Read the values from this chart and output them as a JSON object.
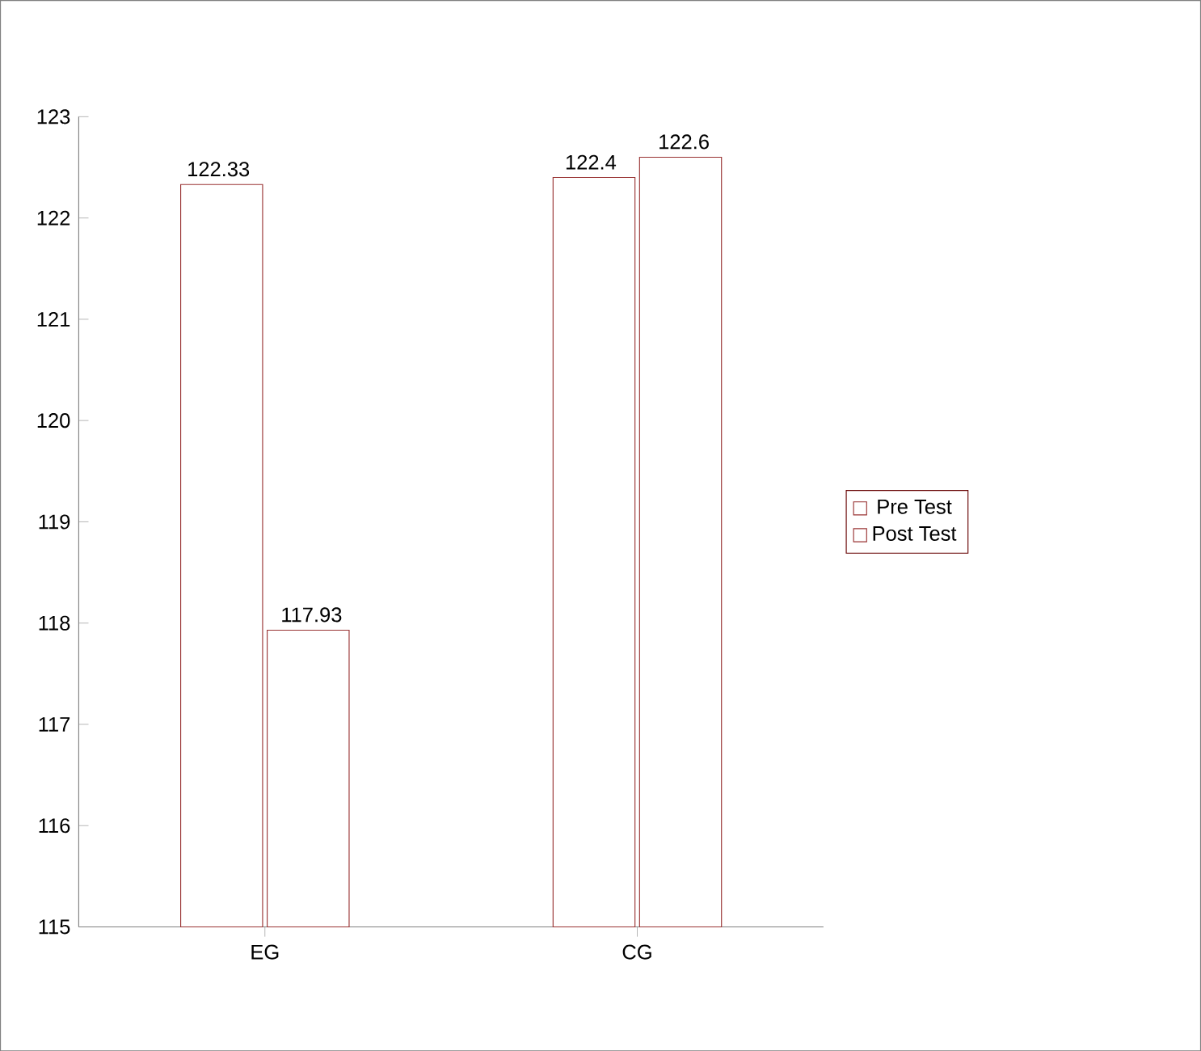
{
  "chart_data": {
    "type": "bar",
    "categories": [
      "EG",
      "CG"
    ],
    "series": [
      {
        "name": "Pre Test",
        "color": "#993333",
        "values": [
          122.33,
          122.4
        ]
      },
      {
        "name": "Post Test",
        "color": "#993333",
        "values": [
          117.93,
          122.6
        ]
      }
    ],
    "ylim": [
      115,
      123
    ],
    "yticks": [
      115,
      116,
      117,
      118,
      119,
      120,
      121,
      122,
      123
    ],
    "data_labels": true,
    "legend": "right",
    "grid": false
  }
}
